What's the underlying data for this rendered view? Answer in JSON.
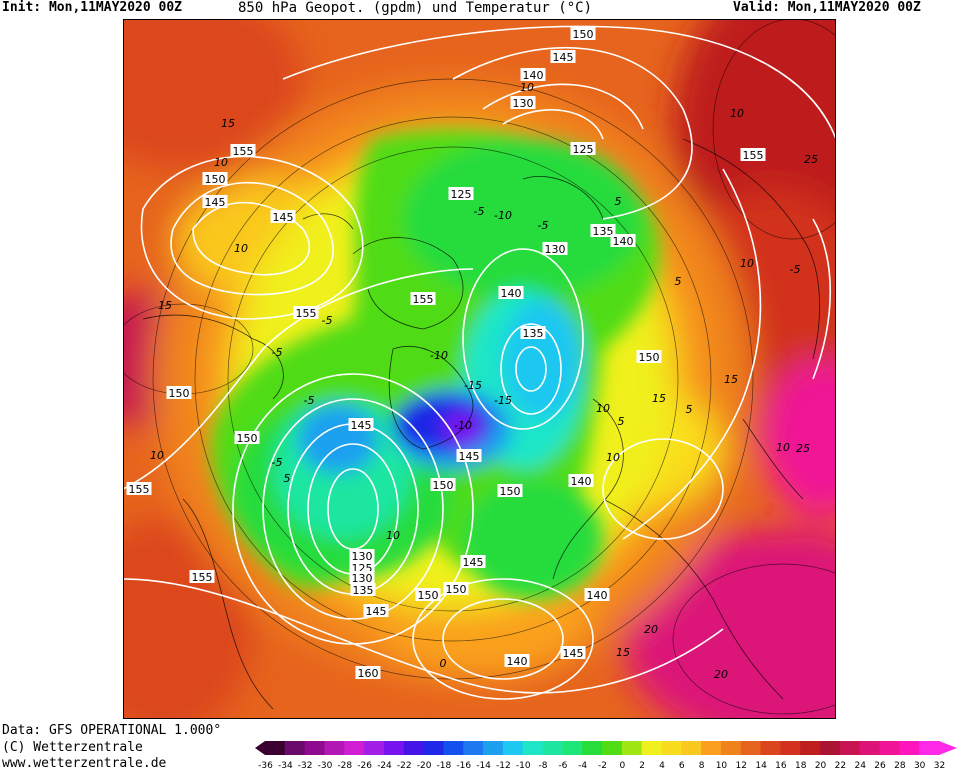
{
  "header": {
    "init": "Init: Mon,11MAY2020 00Z",
    "title": "850 hPa Geopot. (gpdm) und Temperatur (°C)",
    "valid": "Valid: Mon,11MAY2020 00Z"
  },
  "footer": {
    "source": "Data: GFS OPERATIONAL 1.000°",
    "copyright": "(C) Wetterzentrale",
    "url": "www.wetterzentrale.de"
  },
  "colorbar": {
    "ticks": [
      "-36",
      "-34",
      "-32",
      "-30",
      "-28",
      "-26",
      "-24",
      "-22",
      "-20",
      "-18",
      "-16",
      "-14",
      "-12",
      "-10",
      "-8",
      "-6",
      "-4",
      "-2",
      "0",
      "2",
      "4",
      "6",
      "8",
      "10",
      "12",
      "14",
      "16",
      "18",
      "20",
      "22",
      "24",
      "26",
      "28",
      "30",
      "32"
    ],
    "colors": [
      "#3a0030",
      "#6a0a6a",
      "#900a90",
      "#b418b4",
      "#d21ed2",
      "#a01ee6",
      "#7814f0",
      "#4614e6",
      "#1e28e6",
      "#1450f0",
      "#1e78f0",
      "#1ea0f0",
      "#1ec8f0",
      "#1ee6c8",
      "#1ee6a0",
      "#1ee678",
      "#28dc3c",
      "#50dc14",
      "#a0e614",
      "#f0f01e",
      "#fadc1e",
      "#fac81e",
      "#faa01e",
      "#f0821e",
      "#e6641e",
      "#dc461e",
      "#d2321e",
      "#be1e1e",
      "#aa1432",
      "#c81450",
      "#dc1478",
      "#f01496",
      "#ff14be",
      "#ff28e6"
    ]
  },
  "map": {
    "geopotential_labels": [
      "150",
      "145",
      "140",
      "130",
      "125",
      "155",
      "150",
      "145",
      "145",
      "125",
      "135",
      "140",
      "130",
      "155",
      "155",
      "140",
      "135",
      "150",
      "150",
      "155",
      "145",
      "150",
      "145",
      "150",
      "150",
      "140",
      "130",
      "145",
      "155",
      "125",
      "130",
      "135",
      "155",
      "140",
      "150",
      "150",
      "145",
      "160",
      "140",
      "145"
    ],
    "temperature_labels": [
      "15",
      "10",
      "10",
      "-5",
      "5",
      "-10",
      "-5",
      "10",
      "-5",
      "-5",
      "-10",
      "-15",
      "-10",
      "-15",
      "10",
      "15",
      "10",
      "5",
      "-5",
      "-5",
      "10",
      "-5",
      "10",
      "5",
      "10",
      "20",
      "15",
      "25",
      "10",
      "15",
      "5",
      "0",
      "20",
      "15",
      "10",
      "5",
      "25"
    ]
  }
}
